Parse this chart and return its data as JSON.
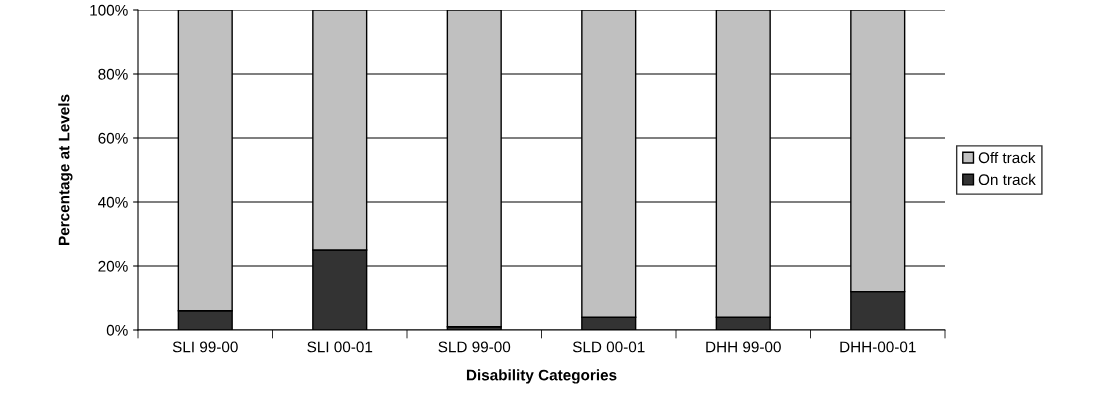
{
  "chart_data": {
    "type": "bar",
    "stacked": true,
    "xlabel": "Disability Categories",
    "ylabel": "Percentage at Levels",
    "categories": [
      "SLI 99-00",
      "SLI 00-01",
      "SLD 99-00",
      "SLD 00-01",
      "DHH 99-00",
      "DHH-00-01"
    ],
    "series": [
      {
        "name": "On track",
        "color": "#333333",
        "values": [
          6,
          25,
          1,
          4,
          4,
          12
        ]
      },
      {
        "name": "Off track",
        "color": "#c0c0c0",
        "values": [
          94,
          75,
          99,
          96,
          96,
          88
        ]
      }
    ],
    "ylim": [
      0,
      100
    ],
    "yticks": [
      {
        "value": 0,
        "label": "0%"
      },
      {
        "value": 20,
        "label": "20%"
      },
      {
        "value": 40,
        "label": "40%"
      },
      {
        "value": 60,
        "label": "60%"
      },
      {
        "value": 80,
        "label": "80%"
      },
      {
        "value": 100,
        "label": "100%"
      }
    ],
    "grid": "y",
    "legend": "right"
  }
}
